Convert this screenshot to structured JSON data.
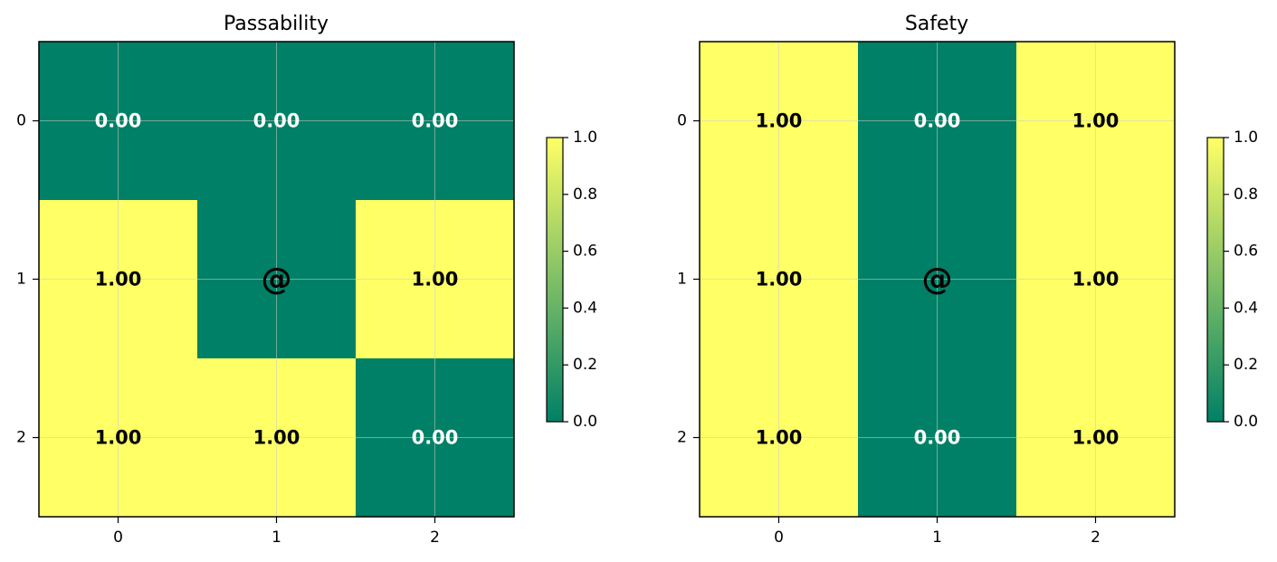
{
  "colors": {
    "low": "#008066",
    "high": "#ffff66",
    "text_on_low": "#ffffff",
    "text_on_high": "#000000",
    "grid": "#c8d0c8"
  },
  "chart_data": [
    {
      "type": "heatmap",
      "title": "Passability",
      "x_ticks": [
        "0",
        "1",
        "2"
      ],
      "y_ticks": [
        "0",
        "1",
        "2"
      ],
      "values": [
        [
          0,
          0,
          0
        ],
        [
          1,
          0,
          1
        ],
        [
          1,
          1,
          0
        ]
      ],
      "cell_labels": [
        [
          "0.00",
          "0.00",
          "0.00"
        ],
        [
          "1.00",
          "@",
          "1.00"
        ],
        [
          "1.00",
          "1.00",
          "0.00"
        ]
      ],
      "colorbar": {
        "range": [
          0,
          1
        ],
        "ticks": [
          "0.0",
          "0.2",
          "0.4",
          "0.6",
          "0.8",
          "1.0"
        ]
      },
      "grid": true
    },
    {
      "type": "heatmap",
      "title": "Safety",
      "x_ticks": [
        "0",
        "1",
        "2"
      ],
      "y_ticks": [
        "0",
        "1",
        "2"
      ],
      "values": [
        [
          1,
          0,
          1
        ],
        [
          1,
          0,
          1
        ],
        [
          1,
          0,
          1
        ]
      ],
      "cell_labels": [
        [
          "1.00",
          "0.00",
          "1.00"
        ],
        [
          "1.00",
          "@",
          "1.00"
        ],
        [
          "1.00",
          "0.00",
          "1.00"
        ]
      ],
      "colorbar": {
        "range": [
          0,
          1
        ],
        "ticks": [
          "0.0",
          "0.2",
          "0.4",
          "0.6",
          "0.8",
          "1.0"
        ]
      },
      "grid": true
    }
  ]
}
